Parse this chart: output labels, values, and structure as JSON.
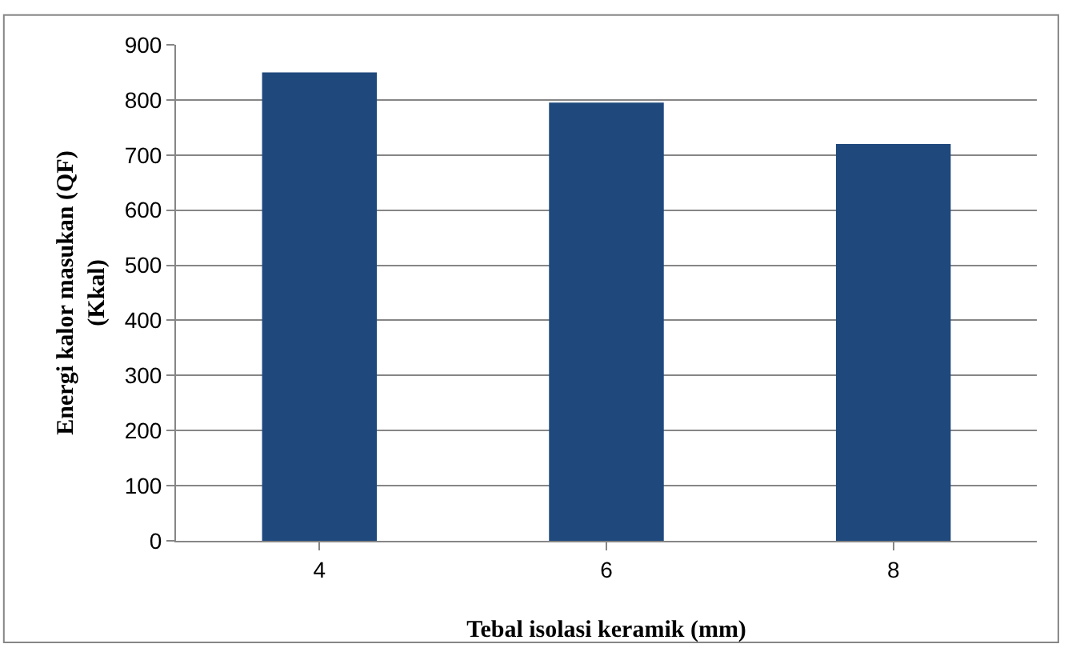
{
  "chart_data": {
    "type": "bar",
    "xlabel": "Tebal isolasi keramik (mm)",
    "ylabel": "Energi kalor masukan (QF)\n(Kkal)",
    "categories": [
      "4",
      "6",
      "8"
    ],
    "values": [
      850,
      795,
      720
    ],
    "color": "#1f497d",
    "ylim": [
      0,
      900
    ],
    "yticks": [
      0,
      100,
      200,
      300,
      400,
      500,
      600,
      700,
      800,
      900
    ],
    "grid": "y"
  }
}
